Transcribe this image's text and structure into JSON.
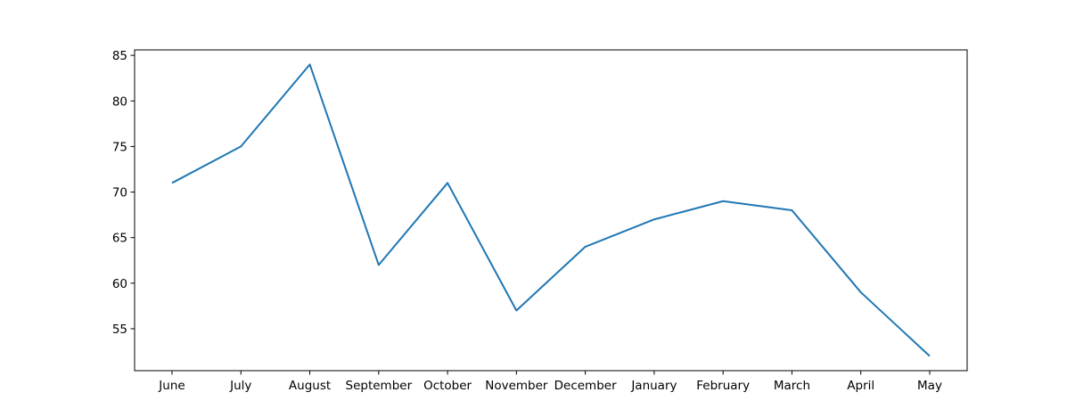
{
  "chart_data": {
    "type": "line",
    "title": "",
    "xlabel": "",
    "ylabel": "",
    "categories": [
      "June",
      "July",
      "August",
      "September",
      "October",
      "November",
      "December",
      "January",
      "February",
      "March",
      "April",
      "May"
    ],
    "series": [
      {
        "values": [
          71,
          75,
          84,
          62,
          71,
          57,
          64,
          67,
          69,
          68,
          59,
          52
        ],
        "color": "#1f77b4"
      }
    ],
    "ylim": [
      50.4,
      85.6
    ],
    "yticks": [
      55,
      60,
      65,
      70,
      75,
      80,
      85
    ],
    "grid": false,
    "legend": "none"
  }
}
